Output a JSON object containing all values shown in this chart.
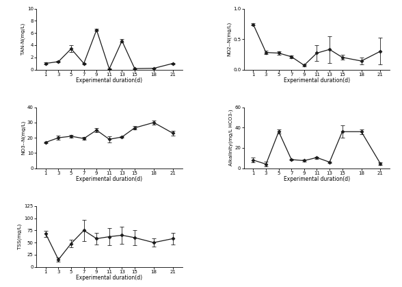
{
  "x": [
    1,
    3,
    5,
    7,
    9,
    11,
    13,
    15,
    18,
    21
  ],
  "TAN": {
    "y": [
      1.0,
      1.3,
      3.4,
      1.0,
      6.5,
      0.1,
      4.7,
      0.15,
      0.2,
      1.0
    ],
    "yerr": [
      0.15,
      0.1,
      0.55,
      0.12,
      0.18,
      0.04,
      0.28,
      0.04,
      0.04,
      0.12
    ],
    "ylabel": "TAN-N(mg/L)",
    "ylim": [
      0,
      10
    ],
    "yticks": [
      0,
      2,
      4,
      6,
      8,
      10
    ]
  },
  "NO2": {
    "y": [
      0.74,
      0.28,
      0.27,
      0.21,
      0.07,
      0.27,
      0.33,
      0.2,
      0.14,
      0.3
    ],
    "yerr": [
      0.02,
      0.03,
      0.03,
      0.02,
      0.02,
      0.13,
      0.22,
      0.04,
      0.06,
      0.22
    ],
    "ylabel": "NO2--N(mg/L)",
    "ylim": [
      0,
      1
    ],
    "yticks": [
      0,
      0.5,
      1.0
    ]
  },
  "NO3": {
    "y": [
      17.0,
      20.0,
      21.0,
      19.5,
      25.0,
      19.0,
      20.5,
      26.5,
      30.0,
      23.0
    ],
    "yerr": [
      0.5,
      1.5,
      1.0,
      1.0,
      1.5,
      2.0,
      0.5,
      1.0,
      1.5,
      1.5
    ],
    "ylabel": "NO3--N(mg/L)",
    "ylim": [
      0,
      40
    ],
    "yticks": [
      0,
      10,
      20,
      30,
      40
    ]
  },
  "Alkalinity": {
    "y": [
      8.0,
      4.0,
      36.0,
      8.5,
      7.5,
      10.5,
      6.0,
      36.0,
      36.0,
      4.5
    ],
    "yerr": [
      2.5,
      2.5,
      2.0,
      1.0,
      0.8,
      1.0,
      0.8,
      6.0,
      2.5,
      1.5
    ],
    "ylabel": "Alkalinity(mg/L HCO3-)",
    "ylim": [
      0,
      60
    ],
    "yticks": [
      0,
      20,
      40,
      60
    ]
  },
  "TSS": {
    "y": [
      68.0,
      15.0,
      48.0,
      75.0,
      58.0,
      62.0,
      65.0,
      60.0,
      50.0,
      58.0
    ],
    "yerr": [
      6.0,
      4.0,
      8.0,
      22.0,
      12.0,
      18.0,
      18.0,
      15.0,
      8.0,
      12.0
    ],
    "ylabel": "TSS(mg/L)",
    "ylim": [
      0,
      125
    ],
    "yticks": [
      0,
      25,
      50,
      75,
      100,
      125
    ]
  },
  "xlabel": "Experimental duration(d)",
  "xticks": [
    1,
    3,
    5,
    7,
    9,
    11,
    13,
    15,
    18,
    21
  ],
  "line_color": "#1a1a1a",
  "marker": "D",
  "markersize": 2.5,
  "linewidth": 0.9,
  "capsize": 2
}
